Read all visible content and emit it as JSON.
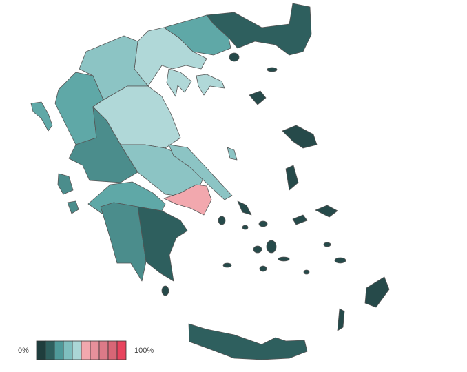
{
  "legend": {
    "min_label": "0%",
    "max_label": "100%",
    "colors": [
      "#1f3d3d",
      "#2e5f5e",
      "#4f9a9a",
      "#7fbfbf",
      "#abd6d6",
      "#f2a8ae",
      "#e6909b",
      "#dc7a88",
      "#d86676",
      "#e8445e"
    ]
  },
  "regions": [
    {
      "color": "#2e5f5e"
    },
    {
      "color": "#5fa8a7"
    },
    {
      "color": "#b0d8d8"
    },
    {
      "color": "#8cc4c4"
    },
    {
      "color": "#5fa8a7"
    },
    {
      "color": "#b0d8d8"
    },
    {
      "color": "#4b8d8c"
    },
    {
      "color": "#8cc4c4"
    },
    {
      "color": "#f2a8ae"
    },
    {
      "color": "#5fa8a7"
    },
    {
      "color": "#4b8d8c"
    },
    {
      "color": "#2e5f5e"
    },
    {
      "color": "#2e5f5e"
    },
    {
      "color": "#264a4a"
    }
  ]
}
